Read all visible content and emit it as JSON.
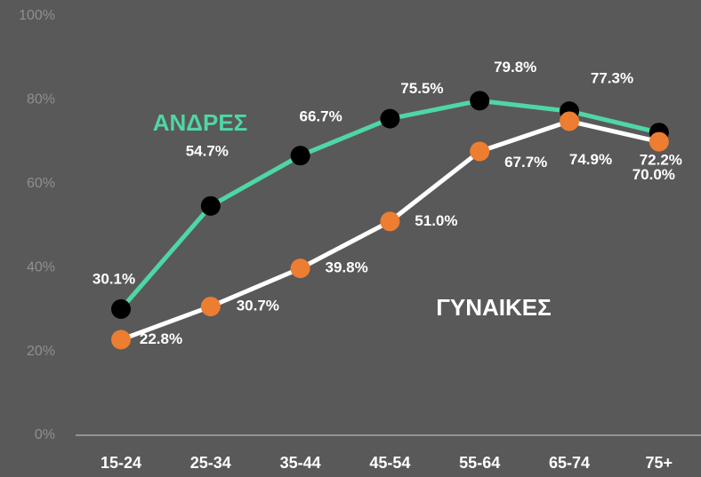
{
  "chart_data": {
    "type": "line",
    "categories": [
      "15-24",
      "25-34",
      "35-44",
      "45-54",
      "55-64",
      "65-74",
      "75+"
    ],
    "series": [
      {
        "name": "ΑΝΔΡΕΣ",
        "color": "#4fd6a5",
        "marker_color": "#000000",
        "values": [
          30.1,
          54.7,
          66.7,
          75.5,
          79.8,
          77.3,
          72.2
        ],
        "value_labels": [
          "30.1%",
          "54.7%",
          "66.7%",
          "75.5%",
          "79.8%",
          "77.3%",
          "72.2%"
        ]
      },
      {
        "name": "ΓΥΝΑΙΚΕΣ",
        "color": "#ffffff",
        "marker_color": "#ed7d31",
        "values": [
          22.8,
          30.7,
          39.8,
          51.0,
          67.7,
          74.9,
          70.0
        ],
        "value_labels": [
          "22.8%",
          "30.7%",
          "39.8%",
          "51.0%",
          "67.7%",
          "74.9%",
          "70.0%"
        ]
      }
    ],
    "ylim": [
      0,
      100
    ],
    "yticks": [
      {
        "value": 0,
        "label": "0%"
      },
      {
        "value": 20,
        "label": "20%"
      },
      {
        "value": 40,
        "label": "40%"
      },
      {
        "value": 60,
        "label": "60%"
      },
      {
        "value": 80,
        "label": "80%"
      },
      {
        "value": 100,
        "label": "100%"
      }
    ]
  }
}
